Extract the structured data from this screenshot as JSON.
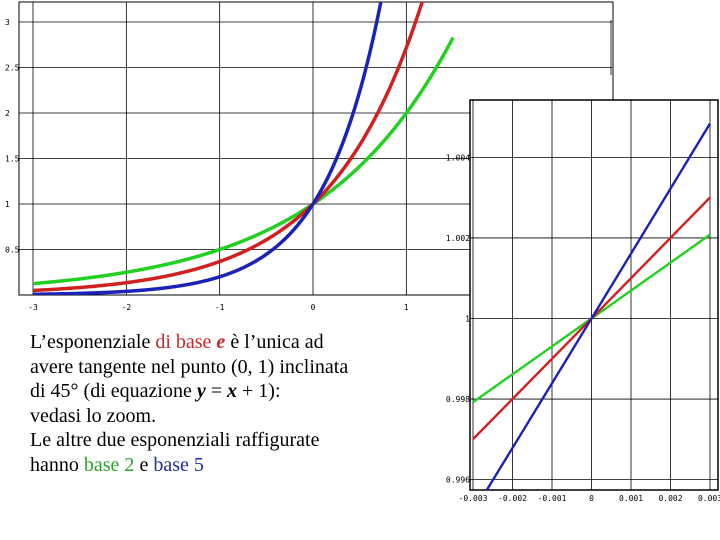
{
  "caption": {
    "line1_a": "L’esponenziale ",
    "line1_b": "di base ",
    "line1_c": "e",
    "line1_d": " è l’unica ad",
    "line2": "avere tangente nel punto (0, 1) inclinata",
    "line3_a": "di 45° (di equazione ",
    "line3_b": "y",
    "line3_c": " = ",
    "line3_d": "x",
    "line3_e": " + 1):",
    "line4": "vedasi lo zoom.",
    "line5": "Le altre due esponenziali raffigurate",
    "line6_a": "hanno ",
    "line6_b": "base 2",
    "line6_c": " e ",
    "line6_d": "base 5"
  },
  "colors": {
    "base_e": "#d02020",
    "base_2": "#22d022",
    "base_5": "#1a22b8",
    "grid": "#000000"
  },
  "chart_data": [
    {
      "type": "line",
      "title": "",
      "xlabel": "",
      "ylabel": "",
      "xlim": [
        -3,
        1.5
      ],
      "ylim": [
        0,
        3
      ],
      "x_ticks": [
        -3,
        -2,
        -1,
        0,
        1
      ],
      "x_tick_labels": [
        "-3",
        "-2",
        "-1",
        "0",
        "1"
      ],
      "y_ticks": [
        0.5,
        1,
        1.5,
        2,
        2.5,
        3
      ],
      "y_tick_labels": [
        "0.5",
        "1",
        "1.5",
        "2",
        "2.5",
        "3"
      ],
      "grid": true,
      "series": [
        {
          "function": "2^x",
          "base": 2,
          "color": "#22d022"
        },
        {
          "function": "e^x",
          "base": 2.718281828,
          "color": "#d02020"
        },
        {
          "function": "5^x",
          "base": 5,
          "color": "#1a22b8"
        }
      ]
    },
    {
      "type": "line",
      "title": "",
      "xlabel": "",
      "ylabel": "",
      "xlim": [
        -0.003,
        0.003
      ],
      "ylim": [
        0.9947,
        1.0053
      ],
      "x_ticks": [
        -0.003,
        -0.002,
        -0.001,
        0,
        0.001,
        0.002,
        0.003
      ],
      "x_tick_labels": [
        "-0.003",
        "-0.002",
        "-0.001",
        "0",
        "0.001",
        "0.002",
        "0.003"
      ],
      "y_ticks": [
        0.996,
        0.998,
        1,
        1.002,
        1.004
      ],
      "y_tick_labels": [
        "0.996",
        "0.998",
        "1",
        "1.002",
        "1.004"
      ],
      "grid": true,
      "series": [
        {
          "function": "2^x",
          "base": 2,
          "color": "#22d022"
        },
        {
          "function": "e^x",
          "base": 2.718281828,
          "color": "#d02020"
        },
        {
          "function": "5^x",
          "base": 5,
          "color": "#1a22b8"
        }
      ]
    }
  ]
}
